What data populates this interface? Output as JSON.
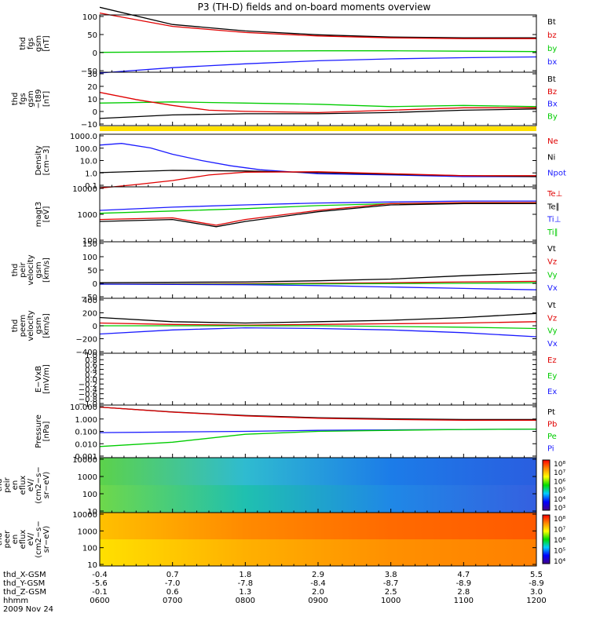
{
  "title": "P3 (TH-D) fields and on-board moments overview",
  "colors": {
    "black": "#000000",
    "red": "#e00000",
    "green": "#00cc00",
    "blue": "#1a1aff",
    "yellow": "#ffe000"
  },
  "time_ticks": [
    "0600",
    "0700",
    "0800",
    "0900",
    "1000",
    "1100",
    "1200"
  ],
  "ephemeris": {
    "rows": [
      {
        "label": "thd_X-GSM",
        "values": [
          "-0.4",
          "0.7",
          "1.8",
          "2.9",
          "3.8",
          "4.7",
          "5.5"
        ]
      },
      {
        "label": "thd_Y-GSM",
        "values": [
          "-5.6",
          "-7.0",
          "-7.8",
          "-8.4",
          "-8.7",
          "-8.9",
          "-8.9"
        ]
      },
      {
        "label": "thd_Z-GSM",
        "values": [
          "-0.1",
          "0.6",
          "1.3",
          "2.0",
          "2.5",
          "2.8",
          "3.0"
        ]
      },
      {
        "label": "hhmm",
        "values": [
          "0600",
          "0700",
          "0800",
          "0900",
          "1000",
          "1100",
          "1200"
        ]
      }
    ],
    "date": "2009 Nov 24"
  },
  "chart_data": [
    {
      "id": "p1",
      "type": "line",
      "ylabel": [
        "thd",
        "fgs",
        "gsm",
        "[nT]"
      ],
      "ylim": [
        -50,
        100
      ],
      "yticks": [
        "100",
        "50",
        "0",
        "−50"
      ],
      "legend": [
        {
          "name": "Bt",
          "color": "black"
        },
        {
          "name": "bz",
          "color": "red"
        },
        {
          "name": "by",
          "color": "green"
        },
        {
          "name": "bx",
          "color": "blue"
        }
      ],
      "series": [
        {
          "name": "Bt",
          "color": "black",
          "x": [
            6,
            7,
            8,
            9,
            10,
            11,
            12
          ],
          "values": [
            120,
            75,
            58,
            48,
            42,
            40,
            40
          ]
        },
        {
          "name": "bz",
          "color": "red",
          "x": [
            6,
            7,
            8,
            9,
            10,
            11,
            12
          ],
          "values": [
            105,
            70,
            54,
            45,
            40,
            38,
            38
          ]
        },
        {
          "name": "by",
          "color": "green",
          "x": [
            6,
            7,
            8,
            9,
            10,
            11,
            12
          ],
          "values": [
            2,
            3,
            5,
            6,
            6,
            5,
            4
          ]
        },
        {
          "name": "bx",
          "color": "blue",
          "x": [
            6,
            7,
            8,
            9,
            10,
            11,
            12
          ],
          "values": [
            -52,
            -38,
            -28,
            -20,
            -15,
            -12,
            -10
          ]
        }
      ]
    },
    {
      "id": "p2",
      "type": "line",
      "ylabel": [
        "thd",
        "fgs",
        "gsm",
        "−t89",
        "[nT]"
      ],
      "ylim": [
        -15,
        30
      ],
      "yticks": [
        "30",
        "20",
        "10",
        "0",
        "−10"
      ],
      "legend": [
        {
          "name": "Bt",
          "color": "black"
        },
        {
          "name": "Bz",
          "color": "red"
        },
        {
          "name": "Bx",
          "color": "blue"
        },
        {
          "name": "By",
          "color": "green"
        }
      ],
      "series": [
        {
          "name": "By",
          "color": "green",
          "x": [
            6,
            7,
            8,
            9,
            10,
            11,
            12
          ],
          "values": [
            4,
            5,
            4,
            3,
            1,
            2,
            1
          ]
        },
        {
          "name": "Bz",
          "color": "red",
          "x": [
            6,
            6.5,
            7,
            7.5,
            8,
            9,
            10,
            11,
            12
          ],
          "values": [
            13,
            7,
            2,
            -2,
            -3,
            -4,
            -2,
            0,
            0
          ]
        },
        {
          "name": "Bt",
          "color": "black",
          "x": [
            6,
            7,
            8,
            9,
            10,
            11,
            12
          ],
          "values": [
            -9,
            -6,
            -5,
            -5,
            -4,
            -2,
            -1
          ]
        }
      ]
    },
    {
      "id": "p3",
      "type": "line",
      "log": true,
      "ylabel": [
        "Density",
        "[cm−3]"
      ],
      "ylim": [
        0.1,
        1000
      ],
      "yticks": [
        "1000.0",
        "100.0",
        "10.0",
        "1.0",
        "0.1"
      ],
      "legend": [
        {
          "name": "Ne",
          "color": "red"
        },
        {
          "name": "Ni",
          "color": "black"
        },
        {
          "name": "Npot",
          "color": "blue"
        }
      ],
      "series": [
        {
          "name": "Npot",
          "color": "blue",
          "x": [
            6,
            6.3,
            6.7,
            7,
            7.4,
            7.8,
            8.2,
            9,
            10,
            11,
            12
          ],
          "values": [
            150,
            200,
            90,
            30,
            10,
            4,
            2,
            1,
            0.8,
            0.6,
            0.6
          ]
        },
        {
          "name": "Ni",
          "color": "black",
          "x": [
            6,
            7,
            8,
            9,
            10,
            11,
            12
          ],
          "values": [
            1.2,
            1.8,
            1.6,
            1.2,
            0.9,
            0.7,
            0.6
          ]
        },
        {
          "name": "Ne",
          "color": "red",
          "x": [
            6,
            6.5,
            7,
            7.5,
            8,
            9,
            10,
            11,
            12
          ],
          "values": [
            0.08,
            0.15,
            0.3,
            0.8,
            1.3,
            1.4,
            1.0,
            0.7,
            0.7
          ]
        }
      ]
    },
    {
      "id": "p4",
      "type": "line",
      "log": true,
      "ylabel": [
        "magt3",
        "[eV]"
      ],
      "ylim": [
        20,
        10000
      ],
      "yticks": [
        "10000",
        "1000",
        "100"
      ],
      "legend": [
        {
          "name": "Te⊥",
          "color": "red"
        },
        {
          "name": "Te∥",
          "color": "black"
        },
        {
          "name": "Ti⊥",
          "color": "blue"
        },
        {
          "name": "Ti∥",
          "color": "green"
        }
      ],
      "series": [
        {
          "name": "Ti⊥",
          "color": "blue",
          "x": [
            6,
            7,
            8,
            9,
            10,
            11,
            12
          ],
          "values": [
            700,
            1000,
            1300,
            1600,
            1800,
            2000,
            2000
          ]
        },
        {
          "name": "Ti∥",
          "color": "green",
          "x": [
            6,
            7,
            8,
            9,
            10,
            11,
            12
          ],
          "values": [
            500,
            650,
            850,
            1200,
            1500,
            1600,
            1700
          ]
        },
        {
          "name": "Te⊥",
          "color": "red",
          "x": [
            6,
            7,
            7.6,
            8,
            9,
            10,
            11,
            12
          ],
          "values": [
            250,
            300,
            130,
            250,
            700,
            1500,
            1700,
            1700
          ]
        },
        {
          "name": "Te∥",
          "color": "black",
          "x": [
            6,
            7,
            7.6,
            8,
            9,
            10,
            11,
            12
          ],
          "values": [
            200,
            250,
            110,
            200,
            600,
            1300,
            1500,
            1500
          ]
        }
      ]
    },
    {
      "id": "p5",
      "type": "line",
      "ylabel": [
        "thd",
        "peir",
        "velocity",
        "gsm",
        "[km/s]"
      ],
      "ylim": [
        -50,
        150
      ],
      "yticks": [
        "150",
        "100",
        "50",
        "0",
        "−50"
      ],
      "legend": [
        {
          "name": "Vt",
          "color": "black"
        },
        {
          "name": "Vz",
          "color": "red"
        },
        {
          "name": "Vy",
          "color": "green"
        },
        {
          "name": "Vx",
          "color": "blue"
        }
      ],
      "series": [
        {
          "name": "Vt",
          "color": "black",
          "x": [
            6,
            8,
            9,
            10,
            11,
            12
          ],
          "values": [
            5,
            8,
            12,
            18,
            30,
            40
          ]
        },
        {
          "name": "Vz",
          "color": "red",
          "x": [
            6,
            8,
            9,
            10,
            11,
            12
          ],
          "values": [
            0,
            2,
            3,
            5,
            8,
            10
          ]
        },
        {
          "name": "Vy",
          "color": "green",
          "x": [
            6,
            8,
            9,
            10,
            11,
            12
          ],
          "values": [
            0,
            0,
            1,
            2,
            3,
            5
          ]
        },
        {
          "name": "Vx",
          "color": "blue",
          "x": [
            6,
            8,
            9,
            10,
            11,
            12
          ],
          "values": [
            0,
            -2,
            -5,
            -10,
            -15,
            -20
          ]
        }
      ]
    },
    {
      "id": "p6",
      "type": "line",
      "ylabel": [
        "thd",
        "peem",
        "velocity",
        "gsm",
        "[km/s]"
      ],
      "ylim": [
        -400,
        400
      ],
      "yticks": [
        "400",
        "200",
        "0",
        "−200",
        "−400"
      ],
      "legend": [
        {
          "name": "Vt",
          "color": "black"
        },
        {
          "name": "Vz",
          "color": "red"
        },
        {
          "name": "Vy",
          "color": "green"
        },
        {
          "name": "Vx",
          "color": "blue"
        }
      ],
      "series": [
        {
          "name": "Vt",
          "color": "black",
          "x": [
            6,
            7,
            8,
            9,
            10,
            11,
            12
          ],
          "values": [
            120,
            60,
            40,
            60,
            80,
            120,
            180
          ]
        },
        {
          "name": "Vz",
          "color": "red",
          "x": [
            6,
            7,
            8,
            9,
            10,
            11,
            12
          ],
          "values": [
            40,
            20,
            10,
            20,
            30,
            40,
            60
          ]
        },
        {
          "name": "Vy",
          "color": "green",
          "x": [
            6,
            7,
            8,
            9,
            10,
            11,
            12
          ],
          "values": [
            0,
            0,
            0,
            0,
            -10,
            -20,
            -40
          ]
        },
        {
          "name": "Vx",
          "color": "blue",
          "x": [
            6,
            7,
            8,
            9,
            10,
            11,
            12
          ],
          "values": [
            -120,
            -60,
            -30,
            -40,
            -60,
            -100,
            -160
          ]
        }
      ]
    },
    {
      "id": "p7",
      "type": "line",
      "ylabel": [
        "E−VxB",
        "[mV/m]"
      ],
      "ylim": [
        -1,
        1
      ],
      "yticks": [
        "1.0",
        "0.8",
        "0.6",
        "0.4",
        "0.2",
        "0.0",
        "−0.2",
        "−0.4",
        "−0.6",
        "−0.8",
        "−1.0"
      ],
      "legend": [
        {
          "name": "Ez",
          "color": "red"
        },
        {
          "name": "Ey",
          "color": "green"
        },
        {
          "name": "Ex",
          "color": "blue"
        }
      ],
      "series": []
    },
    {
      "id": "p8",
      "type": "line",
      "log": true,
      "ylabel": [
        "Pressure",
        "[nPa]"
      ],
      "ylim": [
        0.001,
        10
      ],
      "yticks": [
        "10.000",
        "1.000",
        "0.100",
        "0.010",
        "0.001"
      ],
      "legend": [
        {
          "name": "Pt",
          "color": "black"
        },
        {
          "name": "Pb",
          "color": "red"
        },
        {
          "name": "Pe",
          "color": "green"
        },
        {
          "name": "Pi",
          "color": "blue"
        }
      ],
      "series": [
        {
          "name": "Pt",
          "color": "black",
          "x": [
            6,
            7,
            8,
            9,
            10,
            11,
            12
          ],
          "values": [
            7,
            3,
            1.6,
            1.1,
            0.9,
            0.8,
            0.8
          ]
        },
        {
          "name": "Pb",
          "color": "red",
          "x": [
            6,
            7,
            8,
            9,
            10,
            11,
            12
          ],
          "values": [
            7,
            2.9,
            1.5,
            1.0,
            0.8,
            0.7,
            0.7
          ]
        },
        {
          "name": "Pi",
          "color": "blue",
          "x": [
            6,
            7,
            8,
            9,
            10,
            11,
            12
          ],
          "values": [
            0.08,
            0.09,
            0.1,
            0.12,
            0.13,
            0.14,
            0.15
          ]
        },
        {
          "name": "Pe",
          "color": "green",
          "x": [
            6,
            7,
            8,
            9,
            10,
            11,
            12
          ],
          "values": [
            0.007,
            0.015,
            0.06,
            0.1,
            0.12,
            0.14,
            0.15
          ]
        }
      ]
    },
    {
      "id": "s1",
      "type": "heatmap",
      "ylabel": [
        "thd",
        "peir",
        "en",
        "eflux",
        "eV/",
        "(cm2−s−",
        "sr−eV)"
      ],
      "yticks": [
        "10000",
        "1000",
        "100",
        "10"
      ],
      "colorbar": {
        "ticks": [
          "10⁸",
          "10⁷",
          "10⁶",
          "10⁵",
          "10⁴",
          "10³"
        ]
      },
      "bands": [
        [
          "#5cd24a",
          "#2fbbd0",
          "#1c7ce8",
          "#2a5ee0"
        ],
        [
          "#6ed84a",
          "#1fc0b0",
          "#1f88e6",
          "#3560e0"
        ]
      ]
    },
    {
      "id": "s2",
      "type": "heatmap",
      "ylabel": [
        "thd",
        "peer",
        "en",
        "eflux",
        "eV/",
        "(cm2−s−",
        "sr−eV)"
      ],
      "yticks": [
        "10000",
        "1000",
        "100",
        "10"
      ],
      "colorbar": {
        "ticks": [
          "10⁸",
          "10⁷",
          "10⁶",
          "10⁵",
          "10⁴"
        ]
      },
      "bands": [
        [
          "#ffc000",
          "#ff8a00",
          "#ff6a00",
          "#ff5a00"
        ],
        [
          "#ffe000",
          "#ffb000",
          "#ff9000",
          "#ff8000"
        ]
      ]
    }
  ]
}
